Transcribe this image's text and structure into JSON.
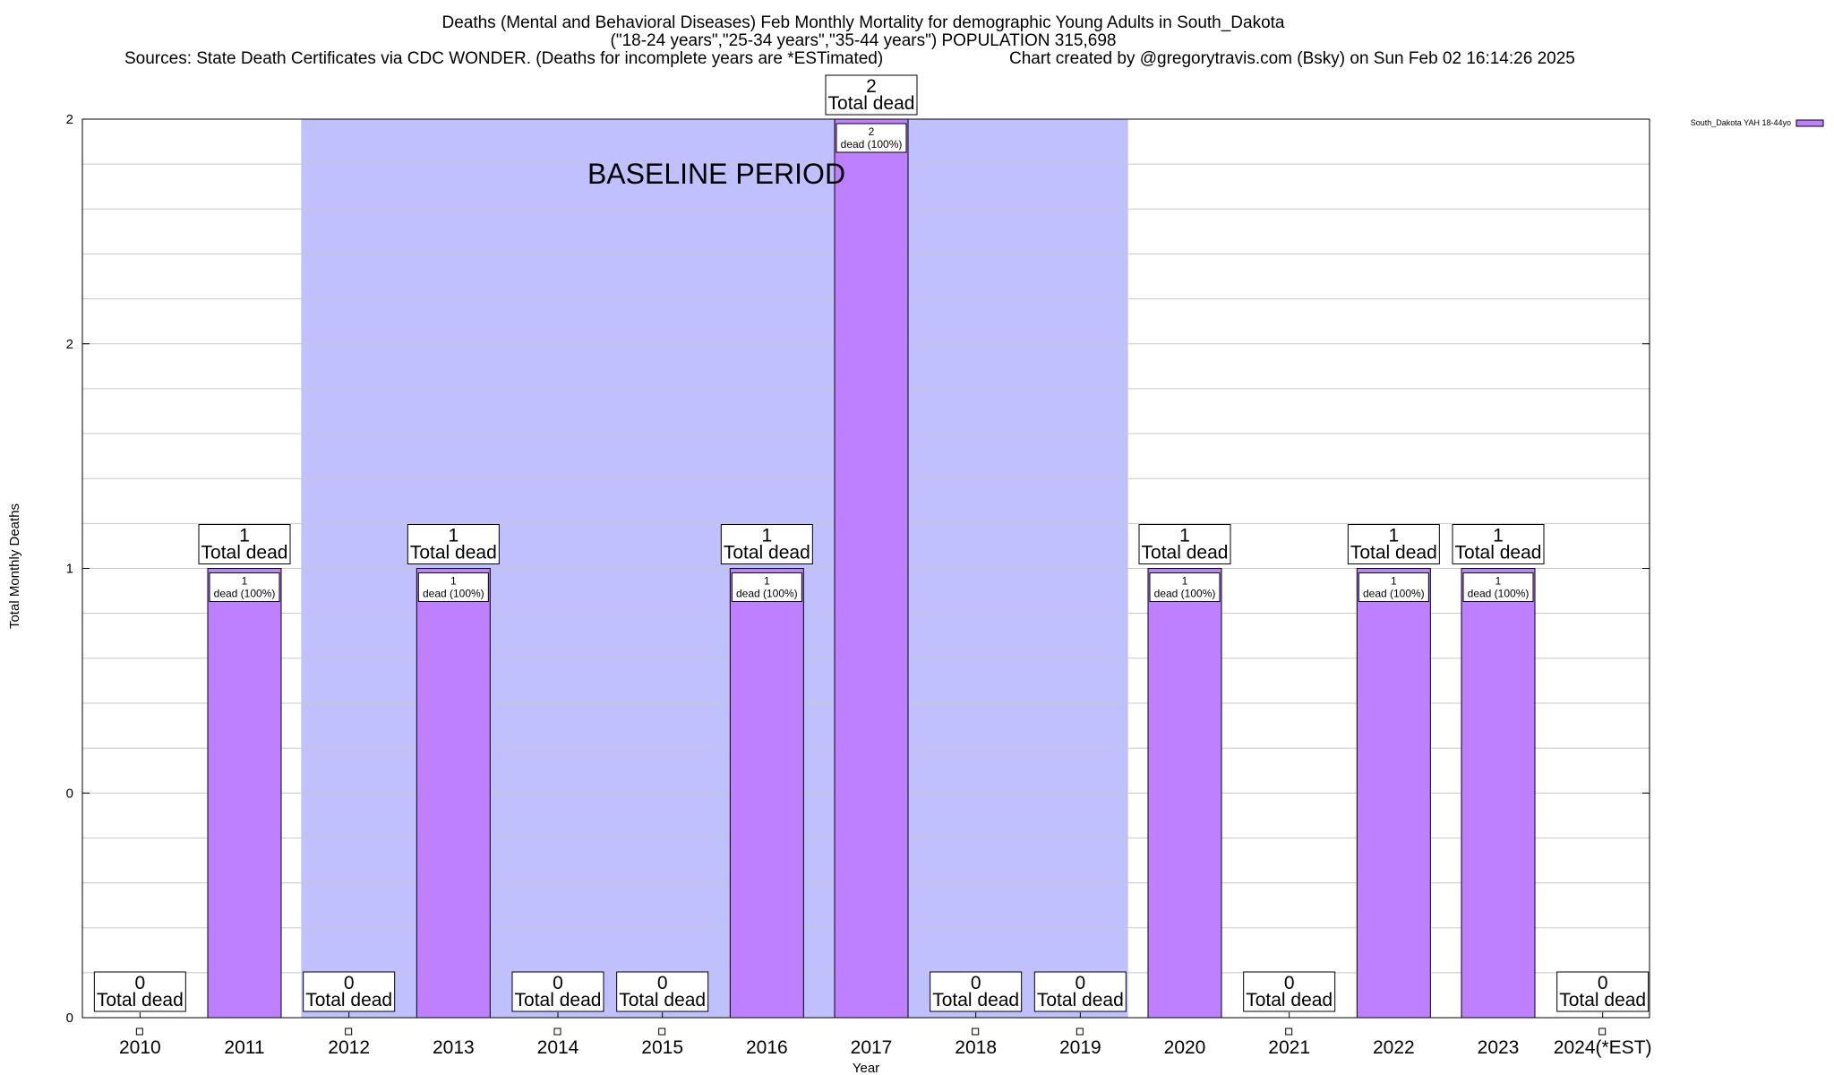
{
  "title_line1": "Deaths (Mental and Behavioral Diseases) Feb Monthly Mortality for demographic Young Adults in South_Dakota",
  "title_line2": "(\"18-24 years\",\"25-34 years\",\"35-44 years\") POPULATION 315,698",
  "sources_text": "Sources: State Death Certificates via CDC WONDER. (Deaths for incomplete years are *ESTimated)",
  "credit_text": "Chart created by @gregorytravis.com (Bsky) on Sun Feb 02 16:14:26 2025",
  "baseline_label": "BASELINE PERIOD",
  "total_dead_word": "Total dead",
  "inner_label_suffix": "dead (100%)",
  "colors": {
    "bar_fill": "#bf80ff",
    "baseline_fill": "#c0c0ff",
    "grid": "#c8c8c8"
  },
  "chart_data": {
    "type": "bar",
    "title": "Deaths (Mental and Behavioral Diseases) Feb Monthly Mortality for demographic Young Adults in South_Dakota",
    "xlabel": "Year",
    "ylabel": "Total Monthly Deaths",
    "ylim": [
      0,
      2
    ],
    "y_tick_labels": [
      "0",
      "0",
      "1",
      "2",
      "2"
    ],
    "categories": [
      "2010",
      "2011",
      "2012",
      "2013",
      "2014",
      "2015",
      "2016",
      "2017",
      "2018",
      "2019",
      "2020",
      "2021",
      "2022",
      "2023",
      "2024(*EST)"
    ],
    "series": [
      {
        "name": "South_Dakota YAH 18-44yo",
        "values": [
          0,
          1,
          0,
          1,
          0,
          0,
          1,
          2,
          0,
          0,
          1,
          0,
          1,
          1,
          0
        ]
      }
    ],
    "baseline_period": [
      "2012",
      "2019"
    ],
    "grid": true,
    "legend": "top-right"
  }
}
